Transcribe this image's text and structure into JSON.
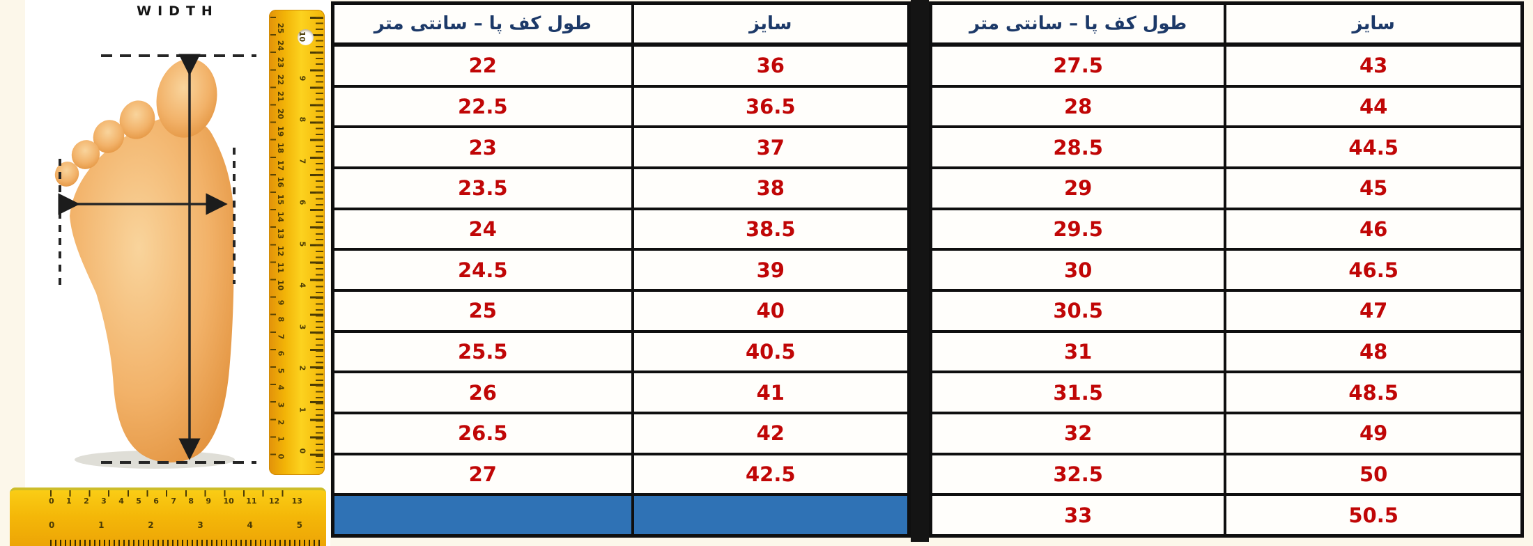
{
  "chart_data": [
    {
      "type": "table",
      "columns": [
        "طول کف پا – سانتی متر",
        "سایز"
      ],
      "rows": [
        [
          "22",
          "36"
        ],
        [
          "22.5",
          "36.5"
        ],
        [
          "23",
          "37"
        ],
        [
          "23.5",
          "38"
        ],
        [
          "24",
          "38.5"
        ],
        [
          "24.5",
          "39"
        ],
        [
          "25",
          "40"
        ],
        [
          "25.5",
          "40.5"
        ],
        [
          "26",
          "41"
        ],
        [
          "26.5",
          "42"
        ],
        [
          "27",
          "42.5"
        ],
        [
          "",
          ""
        ]
      ],
      "highlight_row_index": 11
    },
    {
      "type": "table",
      "columns": [
        "طول کف پا – سانتی متر",
        "سایز"
      ],
      "rows": [
        [
          "27.5",
          "43"
        ],
        [
          "28",
          "44"
        ],
        [
          "28.5",
          "44.5"
        ],
        [
          "29",
          "45"
        ],
        [
          "29.5",
          "46"
        ],
        [
          "30",
          "46.5"
        ],
        [
          "30.5",
          "47"
        ],
        [
          "31",
          "48"
        ],
        [
          "31.5",
          "48.5"
        ],
        [
          "32",
          "49"
        ],
        [
          "32.5",
          "50"
        ],
        [
          "33",
          "50.5"
        ]
      ],
      "highlight_row_index": -1
    }
  ],
  "illustration": {
    "width_label": "WIDTH",
    "vertical_ruler_cm": [
      "25",
      "24",
      "23",
      "22",
      "21",
      "20",
      "19",
      "18",
      "17",
      "16",
      "15",
      "14",
      "13",
      "12",
      "11",
      "10",
      "9",
      "8",
      "7",
      "6",
      "5",
      "4",
      "3",
      "2",
      "1",
      "0"
    ],
    "vertical_ruler_inch": [
      "10",
      "9",
      "8",
      "7",
      "6",
      "5",
      "4",
      "3",
      "2",
      "1",
      "0"
    ],
    "horizontal_ruler_cm": [
      "0",
      "1",
      "2",
      "3",
      "4",
      "5",
      "6",
      "7",
      "8",
      "9",
      "10",
      "11",
      "12",
      "13"
    ],
    "horizontal_ruler_inch": [
      "0",
      "1",
      "2",
      "3",
      "4",
      "5"
    ]
  },
  "colors": {
    "value_red": "#c00606",
    "header_navy": "#1c3968",
    "highlight_blue": "#2f72b5",
    "ruler_yellow": "#f4b708",
    "table_border": "#0f0f0f",
    "background_cream": "#fcf7ea"
  }
}
